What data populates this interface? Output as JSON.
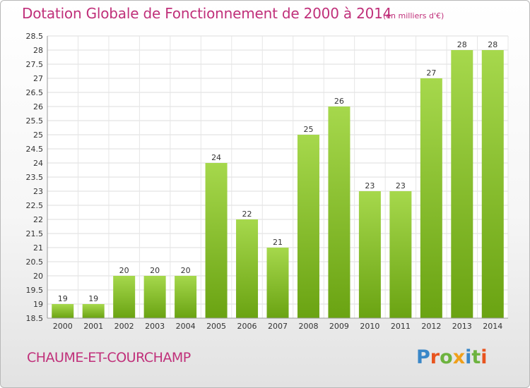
{
  "header": {
    "title": "Dotation Globale de Fonctionnement de 2000 à 2014",
    "unit": "(en milliers d'€)"
  },
  "footer": {
    "commune": "CHAUME-ET-COURCHAMP",
    "brand": "Proxiti"
  },
  "colors": {
    "title": "#c0307a",
    "bar_light": "#a6d84c",
    "bar_dark": "#6aa312",
    "brand_letters": [
      "#3a87c8",
      "#e8541e",
      "#6db33f",
      "#f0a01a",
      "#3a87c8",
      "#6db33f",
      "#e8541e"
    ]
  },
  "chart_data": {
    "type": "bar",
    "title": "Dotation Globale de Fonctionnement de 2000 à 2014",
    "categories": [
      "2000",
      "2001",
      "2002",
      "2003",
      "2004",
      "2005",
      "2006",
      "2007",
      "2008",
      "2009",
      "2010",
      "2011",
      "2012",
      "2013",
      "2014"
    ],
    "values": [
      19,
      19,
      20,
      20,
      20,
      24,
      22,
      21,
      25,
      26,
      23,
      23,
      27,
      28,
      28
    ],
    "data_labels": [
      "19",
      "19",
      "20",
      "20",
      "20",
      "24",
      "22",
      "21",
      "25",
      "26",
      "23",
      "23",
      "27",
      "28",
      "28"
    ],
    "yticks": [
      "18.5",
      "19",
      "19.5",
      "20",
      "20.5",
      "21",
      "21.5",
      "22",
      "22.5",
      "23",
      "23.5",
      "24",
      "24.5",
      "25",
      "25.5",
      "26",
      "26.5",
      "27",
      "27.5",
      "28",
      "28.5"
    ],
    "ylim": [
      18.5,
      28.5
    ],
    "grid": true,
    "legend": "none"
  }
}
